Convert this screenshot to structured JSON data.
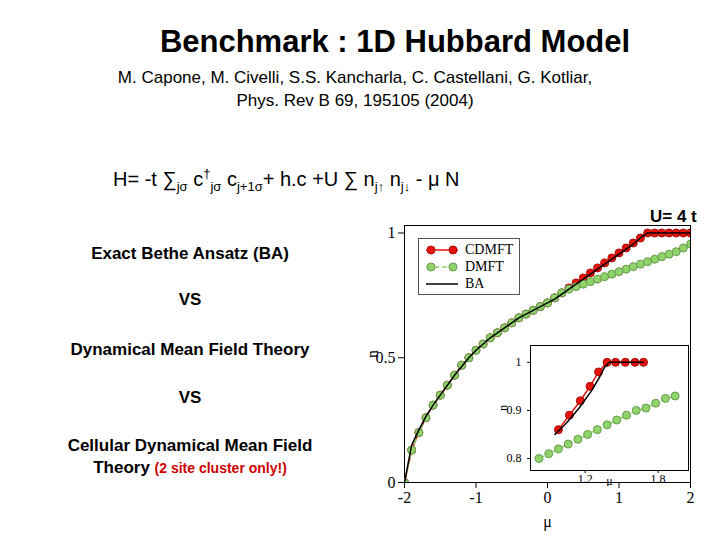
{
  "slide": {
    "title": "Benchmark : 1D Hubbard Model",
    "citation": [
      "M. Capone, M. Civelli, S.S. Kancharla, C. Castellani, G. Kotliar,",
      "Phys. Rev B 69, 195105 (2004)"
    ],
    "hamiltonian": [
      {
        "t": "H= -t ∑"
      },
      {
        "sub": "jσ"
      },
      {
        "t": " c"
      },
      {
        "sup": "†"
      },
      {
        "sub": "jσ"
      },
      {
        "t": " c"
      },
      {
        "sub": "j+1σ"
      },
      {
        "t": "+ h.c +U ∑ n"
      },
      {
        "sub": "j↑"
      },
      {
        "t": " n"
      },
      {
        "sub": "j↓"
      },
      {
        "t": " - μ N"
      }
    ],
    "comparison": [
      [
        {
          "text": "Exact Bethe Ansatz (BA)"
        }
      ],
      [
        {
          "text": "VS"
        }
      ],
      [
        {
          "text": "Dynamical Mean Field Theory"
        }
      ],
      [
        {
          "text": "VS"
        }
      ],
      [
        {
          "text": "Cellular Dynamical Mean Field"
        }
      ],
      [
        {
          "text": "Theory "
        },
        {
          "text": "(2 site cluster only!)",
          "color": "#cc0000"
        }
      ]
    ]
  },
  "chart_data": [
    {
      "type": "line",
      "annotations": [
        "U= 4 t"
      ],
      "x_label": "μ",
      "y_label": "n",
      "xlim": [
        -2,
        2
      ],
      "xticks": [
        -2,
        -1,
        0,
        1,
        2
      ],
      "ylim": [
        0,
        1.03
      ],
      "yticks": [
        0,
        0.5,
        1
      ],
      "legend": "top-left",
      "x": [
        -2,
        -1.9,
        -1.8,
        -1.7,
        -1.6,
        -1.5,
        -1.4,
        -1.3,
        -1.2,
        -1.1,
        -1,
        -0.9,
        -0.8,
        -0.7,
        -0.6,
        -0.5,
        -0.4,
        -0.3,
        -0.2,
        -0.1,
        0,
        0.1,
        0.2,
        0.3,
        0.4,
        0.5,
        0.6,
        0.7,
        0.8,
        0.9,
        1,
        1.1,
        1.2,
        1.3,
        1.4,
        1.5,
        1.6,
        1.7,
        1.8,
        1.9,
        2
      ],
      "series": [
        {
          "name": "CDMFT",
          "color": "#e8120c",
          "marker": "circle",
          "line_style": "solid",
          "values": [
            0,
            0.13,
            0.2,
            0.26,
            0.31,
            0.35,
            0.39,
            0.43,
            0.47,
            0.5,
            0.53,
            0.555,
            0.58,
            0.6,
            0.62,
            0.64,
            0.66,
            0.675,
            0.69,
            0.705,
            0.72,
            0.74,
            0.76,
            0.78,
            0.8,
            0.82,
            0.84,
            0.86,
            0.88,
            0.9,
            0.92,
            0.94,
            0.96,
            0.98,
            1,
            1,
            1,
            1,
            1,
            1,
            1
          ]
        },
        {
          "name": "DMFT",
          "color": "#8fd46a",
          "marker": "circle",
          "line_style": "dashed",
          "values": [
            0,
            0.13,
            0.2,
            0.26,
            0.31,
            0.35,
            0.39,
            0.43,
            0.47,
            0.5,
            0.53,
            0.555,
            0.58,
            0.6,
            0.62,
            0.64,
            0.66,
            0.675,
            0.69,
            0.705,
            0.72,
            0.74,
            0.76,
            0.775,
            0.785,
            0.795,
            0.805,
            0.815,
            0.825,
            0.835,
            0.845,
            0.855,
            0.865,
            0.875,
            0.885,
            0.895,
            0.905,
            0.915,
            0.925,
            0.94,
            0.955
          ]
        },
        {
          "name": "BA",
          "color": "#000000",
          "marker": "none",
          "line_style": "solid",
          "values": [
            0,
            0.15,
            0.21,
            0.265,
            0.31,
            0.35,
            0.39,
            0.43,
            0.465,
            0.5,
            0.53,
            0.555,
            0.58,
            0.6,
            0.62,
            0.64,
            0.66,
            0.675,
            0.69,
            0.705,
            0.72,
            0.735,
            0.755,
            0.775,
            0.795,
            0.815,
            0.835,
            0.855,
            0.875,
            0.895,
            0.915,
            0.935,
            0.955,
            0.98,
            1,
            1,
            1,
            1,
            1,
            1,
            1
          ]
        }
      ]
    },
    {
      "type": "line",
      "x_label": "μ",
      "y_label": "n",
      "xlim": [
        0.75,
        2.05
      ],
      "xticks": [
        1.2,
        1.8
      ],
      "ylim": [
        0.775,
        1.035
      ],
      "yticks": [
        0.8,
        0.9,
        1
      ],
      "series": [
        {
          "name": "CDMFT",
          "color": "#e8120c",
          "marker": "circle",
          "line_style": "solid",
          "x": [
            0.98,
            1.07,
            1.16,
            1.24,
            1.31,
            1.38,
            1.45,
            1.53,
            1.61,
            1.68
          ],
          "values": [
            0.86,
            0.89,
            0.92,
            0.95,
            0.98,
            1,
            1,
            1,
            1,
            1
          ]
        },
        {
          "name": "DMFT",
          "color": "#8fd46a",
          "marker": "circle",
          "line_style": "dashed",
          "x": [
            0.82,
            0.9,
            0.98,
            1.06,
            1.14,
            1.22,
            1.3,
            1.38,
            1.46,
            1.54,
            1.62,
            1.7,
            1.78,
            1.86,
            1.94
          ],
          "values": [
            0.8,
            0.81,
            0.82,
            0.83,
            0.84,
            0.85,
            0.86,
            0.87,
            0.88,
            0.89,
            0.9,
            0.905,
            0.915,
            0.925,
            0.93
          ]
        },
        {
          "name": "BA",
          "color": "#000000",
          "marker": "none",
          "line_style": "solid",
          "x": [
            0.95,
            1.05,
            1.15,
            1.25,
            1.32,
            1.36,
            1.4,
            1.68
          ],
          "values": [
            0.85,
            0.875,
            0.905,
            0.94,
            0.97,
            0.99,
            1,
            1
          ]
        }
      ]
    }
  ]
}
